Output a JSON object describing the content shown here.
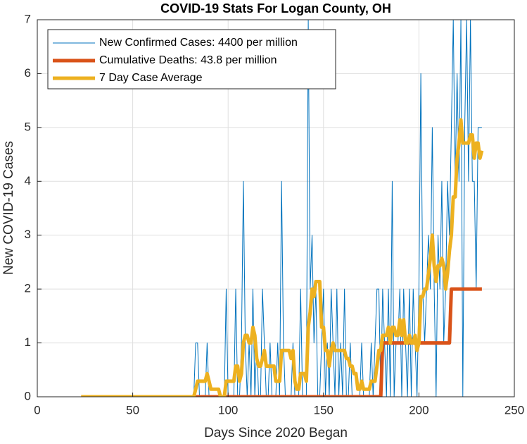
{
  "chart_data": {
    "type": "line",
    "title": "COVID-19 Stats For Logan County, OH",
    "xlabel": "Days Since 2020 Began",
    "ylabel": "New COVID-19 Cases",
    "xlim": [
      0,
      250
    ],
    "xticks": [
      0,
      50,
      100,
      150,
      200,
      250
    ],
    "ylim": [
      0,
      7
    ],
    "yticks": [
      0,
      1,
      2,
      3,
      4,
      5,
      6,
      7
    ],
    "grid": true,
    "legend_position": "upper-left",
    "x": [
      23,
      82,
      83,
      84,
      85,
      86,
      87,
      88,
      89,
      90,
      91,
      92,
      93,
      94,
      95,
      96,
      97,
      98,
      99,
      100,
      101,
      102,
      103,
      104,
      105,
      106,
      107,
      108,
      109,
      110,
      111,
      112,
      113,
      114,
      115,
      116,
      117,
      118,
      119,
      120,
      121,
      122,
      123,
      124,
      125,
      126,
      127,
      128,
      129,
      130,
      131,
      132,
      133,
      134,
      135,
      136,
      137,
      138,
      139,
      140,
      141,
      142,
      143,
      144,
      145,
      146,
      147,
      148,
      149,
      150,
      151,
      152,
      153,
      154,
      155,
      156,
      157,
      158,
      159,
      160,
      161,
      162,
      163,
      164,
      165,
      166,
      167,
      168,
      169,
      170,
      171,
      172,
      173,
      174,
      175,
      176,
      177,
      178,
      179,
      180,
      181,
      182,
      183,
      184,
      185,
      186,
      187,
      188,
      189,
      190,
      191,
      192,
      193,
      194,
      195,
      196,
      197,
      198,
      199,
      200,
      201,
      202,
      203,
      204,
      205,
      206,
      207,
      208,
      209,
      210,
      211,
      212,
      213,
      214,
      215,
      216,
      217,
      218,
      219,
      220,
      221,
      222,
      223,
      224,
      225,
      226,
      227,
      228,
      229,
      230,
      231,
      232,
      233
    ],
    "series": [
      {
        "name": "New Confirmed Cases: 4400 per million",
        "color": "#0072BD",
        "width": 1,
        "values": [
          0,
          0,
          1,
          1,
          0,
          0,
          0,
          0,
          1,
          0,
          0,
          0,
          0,
          0,
          0,
          0,
          0,
          0,
          2,
          0,
          0,
          0,
          0,
          2,
          0,
          0,
          1,
          4,
          1,
          0,
          1,
          0,
          2,
          0,
          1,
          0,
          0,
          2,
          1,
          0,
          0,
          1,
          0,
          0,
          0,
          1,
          0,
          4,
          1,
          0,
          0,
          0,
          0,
          1,
          0,
          0,
          0,
          2,
          0,
          0,
          0,
          7,
          2,
          3,
          1,
          2,
          0,
          0,
          1,
          2,
          0,
          1,
          0,
          2,
          1,
          0,
          2,
          0,
          1,
          0,
          2,
          0,
          0,
          1,
          0,
          0,
          0,
          0,
          0,
          1,
          0,
          0,
          0,
          0,
          1,
          0,
          1,
          2,
          2,
          0,
          2,
          1,
          0,
          2,
          0,
          4,
          0,
          1,
          1,
          2,
          0,
          2,
          1,
          0,
          2,
          0,
          2,
          1,
          0,
          2,
          6,
          2,
          1,
          2,
          3,
          2,
          5,
          2,
          0,
          3,
          2,
          4,
          1,
          2,
          4,
          3,
          5,
          7,
          4,
          6,
          4,
          7,
          0,
          5,
          7,
          4,
          7,
          4,
          4,
          2,
          5,
          5,
          5
        ]
      },
      {
        "name": "Cumulative Deaths: 43.8 per million",
        "color": "#D95319",
        "width": 5,
        "x": [
          23,
          180,
          181,
          216,
          217,
          233
        ],
        "values": [
          0,
          0,
          1,
          1,
          2,
          2
        ]
      },
      {
        "name": "7 Day Case Average",
        "color": "#EDB120",
        "width": 5,
        "values": [
          0,
          0,
          0.14,
          0.29,
          0.29,
          0.29,
          0.29,
          0.29,
          0.43,
          0.29,
          0.14,
          0.14,
          0.14,
          0.14,
          0.14,
          0,
          0,
          0,
          0.29,
          0.29,
          0.29,
          0.29,
          0.29,
          0.57,
          0.57,
          0.29,
          0.43,
          1.0,
          1.14,
          1.14,
          1.0,
          1.0,
          1.29,
          1.14,
          0.71,
          0.57,
          0.57,
          0.71,
          0.86,
          0.57,
          0.57,
          0.57,
          0.57,
          0.57,
          0.29,
          0.29,
          0.29,
          0.86,
          0.86,
          0.86,
          0.86,
          0.86,
          0.71,
          0.86,
          0.29,
          0.14,
          0.14,
          0.43,
          0.43,
          0.43,
          0.29,
          1.29,
          1.57,
          2.0,
          1.86,
          2.14,
          2.14,
          2.14,
          1.29,
          1.29,
          0.86,
          0.86,
          0.57,
          0.86,
          1.0,
          0.86,
          0.86,
          0.86,
          0.86,
          0.86,
          0.86,
          0.71,
          0.71,
          0.57,
          0.57,
          0.43,
          0.43,
          0.14,
          0.14,
          0.29,
          0.14,
          0.14,
          0.14,
          0.14,
          0.29,
          0.29,
          0.29,
          0.57,
          0.86,
          0.86,
          1.14,
          1.14,
          1.14,
          1.29,
          1.0,
          1.29,
          1.29,
          1.14,
          1.14,
          1.43,
          1.14,
          1.43,
          1.0,
          1.0,
          1.14,
          1.0,
          1.0,
          1.14,
          0.86,
          1.0,
          1.86,
          1.86,
          2.0,
          2.0,
          2.29,
          2.57,
          3.0,
          2.43,
          2.14,
          2.43,
          2.43,
          2.57,
          2.43,
          2.0,
          2.29,
          2.71,
          3.0,
          3.71,
          3.71,
          4.43,
          4.71,
          5.14,
          4.71,
          4.71,
          4.71,
          4.71,
          4.86,
          4.86,
          4.43,
          4.71,
          4.71,
          4.43,
          4.57
        ]
      }
    ]
  }
}
